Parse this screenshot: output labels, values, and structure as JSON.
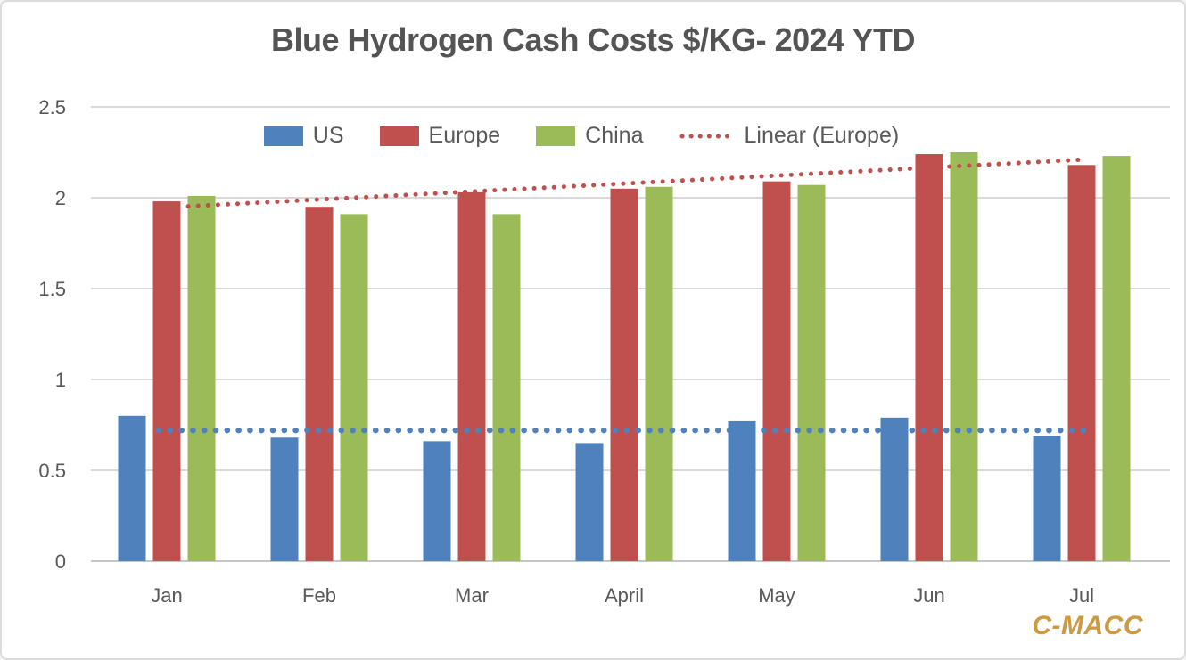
{
  "watermark": "C-MACC",
  "colors": {
    "us": "#4F81BD",
    "europe": "#C0504D",
    "china": "#9BBB59",
    "title_text": "#545454",
    "axis_text": "#595959",
    "gridline": "#D9D9D9",
    "axis_line": "#C6C6C6",
    "watermark": "#CE9A3F",
    "background": "#FFFFFF"
  },
  "chart_data": {
    "type": "bar",
    "title": "Blue Hydrogen Cash Costs $/KG- 2024 YTD",
    "xlabel": "",
    "ylabel": "",
    "categories": [
      "Jan",
      "Feb",
      "Mar",
      "April",
      "May",
      "Jun",
      "Jul"
    ],
    "series": [
      {
        "name": "US",
        "color": "#4F81BD",
        "values": [
          0.8,
          0.68,
          0.66,
          0.65,
          0.77,
          0.79,
          0.69
        ]
      },
      {
        "name": "Europe",
        "color": "#C0504D",
        "values": [
          1.98,
          1.95,
          2.03,
          2.05,
          2.09,
          2.24,
          2.18
        ]
      },
      {
        "name": "China",
        "color": "#9BBB59",
        "values": [
          2.01,
          1.91,
          1.91,
          2.06,
          2.07,
          2.25,
          2.23
        ]
      }
    ],
    "trendlines": [
      {
        "name": "Linear (Europe)",
        "color": "#C0504D",
        "start": 1.95,
        "end": 2.21,
        "in_legend": true
      },
      {
        "name": "Linear (US)",
        "color": "#4F81BD",
        "start": 0.72,
        "end": 0.72,
        "in_legend": false
      }
    ],
    "y_ticks": [
      "0",
      "0.5",
      "1",
      "1.5",
      "2",
      "2.5"
    ],
    "ylim": [
      0,
      2.5
    ],
    "grid": true,
    "legend_position": "top-inside",
    "legend_entries": [
      "US",
      "Europe",
      "China",
      "Linear (Europe)"
    ]
  }
}
